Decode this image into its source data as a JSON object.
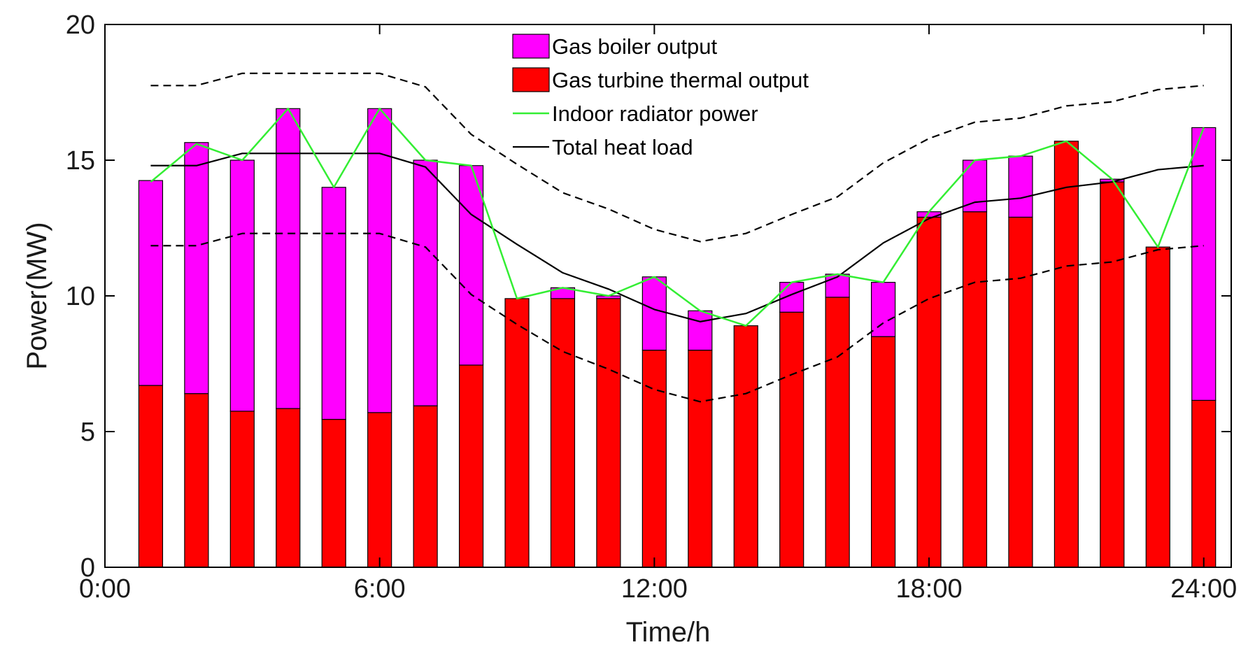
{
  "chart_data": {
    "type": "bar",
    "stacked": true,
    "title": "",
    "xlabel": "Time/h",
    "ylabel": "Power(MW)",
    "xlim": [
      0,
      24.6
    ],
    "ylim": [
      0,
      20
    ],
    "x_ticks": [
      0,
      6,
      12,
      18,
      24
    ],
    "x_tick_labels": [
      "0:00",
      "6:00",
      "12:00",
      "18:00",
      "24:00"
    ],
    "y_ticks": [
      0,
      5,
      10,
      15,
      20
    ],
    "y_tick_labels": [
      "0",
      "5",
      "10",
      "15",
      "20"
    ],
    "legend_position": "top-center",
    "colors": {
      "gas_boiler": "#ff00ff",
      "gas_turbine": "#ff0000",
      "radiator": "#33ee33",
      "heat_load": "#000000"
    },
    "hours": [
      1,
      2,
      3,
      4,
      5,
      6,
      7,
      8,
      9,
      10,
      11,
      12,
      13,
      14,
      15,
      16,
      17,
      18,
      19,
      20,
      21,
      22,
      23,
      24
    ],
    "bar_series": [
      {
        "name": "Gas turbine thermal output",
        "color_key": "gas_turbine",
        "values": [
          6.7,
          6.4,
          5.75,
          5.85,
          5.45,
          5.7,
          5.95,
          7.45,
          9.9,
          9.9,
          9.9,
          8.0,
          8.0,
          8.9,
          9.4,
          9.95,
          8.5,
          12.9,
          13.1,
          12.9,
          15.7,
          14.2,
          11.8,
          6.15
        ]
      },
      {
        "name": "Gas boiler output",
        "color_key": "gas_boiler",
        "values": [
          7.55,
          9.25,
          9.25,
          11.05,
          8.55,
          11.2,
          9.05,
          7.35,
          0,
          0.4,
          0.1,
          2.7,
          1.45,
          0,
          1.1,
          0.85,
          2.0,
          0.2,
          1.9,
          2.25,
          0,
          0.1,
          0,
          10.05
        ]
      }
    ],
    "line_series": [
      {
        "name": "Indoor radiator power",
        "color_key": "radiator",
        "style": "solid",
        "values": [
          14.2,
          15.6,
          15.0,
          16.9,
          14.0,
          16.9,
          15.0,
          14.8,
          9.9,
          10.3,
          10.0,
          10.7,
          9.45,
          8.9,
          10.5,
          10.8,
          10.5,
          13.1,
          15.0,
          15.15,
          15.7,
          14.3,
          11.8,
          16.2
        ]
      },
      {
        "name": "Total heat load",
        "color_key": "heat_load",
        "style": "solid",
        "values": [
          14.8,
          14.8,
          15.25,
          15.25,
          15.25,
          15.25,
          14.75,
          13.0,
          11.9,
          10.85,
          10.25,
          9.5,
          9.05,
          9.35,
          10.05,
          10.7,
          11.95,
          12.85,
          13.45,
          13.6,
          14.0,
          14.2,
          14.65,
          14.8
        ]
      },
      {
        "name": "Upper bound",
        "color_key": "heat_load",
        "style": "dashed",
        "in_legend": false,
        "values": [
          17.75,
          17.75,
          18.2,
          18.2,
          18.2,
          18.2,
          17.7,
          15.95,
          14.85,
          13.8,
          13.2,
          12.45,
          12.0,
          12.3,
          13.0,
          13.65,
          14.9,
          15.8,
          16.4,
          16.55,
          17.0,
          17.15,
          17.6,
          17.75
        ]
      },
      {
        "name": "Lower bound",
        "color_key": "heat_load",
        "style": "dashed",
        "in_legend": false,
        "values": [
          11.85,
          11.85,
          12.3,
          12.3,
          12.3,
          12.3,
          11.8,
          10.05,
          8.95,
          7.95,
          7.3,
          6.55,
          6.1,
          6.4,
          7.1,
          7.75,
          9.0,
          9.9,
          10.5,
          10.65,
          11.1,
          11.25,
          11.7,
          11.85
        ]
      }
    ],
    "legend": [
      {
        "label": "Gas boiler output",
        "kind": "patch",
        "color_key": "gas_boiler"
      },
      {
        "label": "Gas turbine thermal output",
        "kind": "patch",
        "color_key": "gas_turbine"
      },
      {
        "label": "Indoor radiator power",
        "kind": "line",
        "color_key": "radiator"
      },
      {
        "label": "Total heat load",
        "kind": "line",
        "color_key": "heat_load"
      }
    ]
  }
}
